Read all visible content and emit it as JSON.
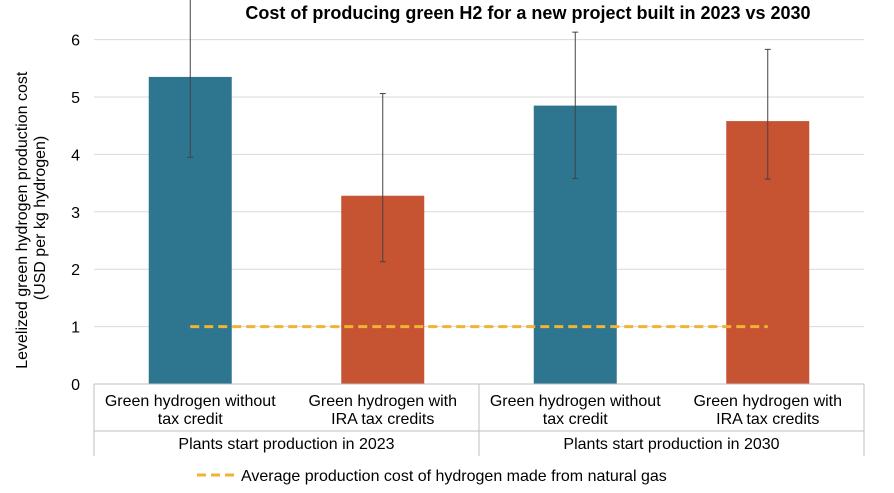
{
  "chart_data": {
    "type": "bar",
    "title": "Cost of producing green H2 for a new project built in 2023 vs 2030",
    "ylabel_lines": [
      "Levelized green hydrogen production cost",
      "(USD per kg hydrogen)"
    ],
    "ylim": [
      0,
      6.5
    ],
    "yticks": [
      "0",
      "1",
      "2",
      "3",
      "4",
      "5",
      "6"
    ],
    "grid": true,
    "bars": [
      {
        "label_lines": [
          "Green hydrogen without",
          "tax credit"
        ],
        "value": 5.35,
        "err_low": 3.95,
        "err_high": 7.0,
        "color": "#2E7590"
      },
      {
        "label_lines": [
          "Green hydrogen with",
          "IRA tax credits"
        ],
        "value": 3.28,
        "err_low": 2.13,
        "err_high": 5.06,
        "color": "#C65332"
      },
      {
        "label_lines": [
          "Green hydrogen without",
          "tax credit"
        ],
        "value": 4.85,
        "err_low": 3.58,
        "err_high": 6.13,
        "color": "#2E7590"
      },
      {
        "label_lines": [
          "Green hydrogen with",
          "IRA tax credits"
        ],
        "value": 4.58,
        "err_low": 3.57,
        "err_high": 5.83,
        "color": "#C65332"
      }
    ],
    "groups": [
      "Plants start production in 2023",
      "Plants start production in 2030"
    ],
    "reference_line": {
      "value": 1.0,
      "color": "#F2B233",
      "label": "Average production cost of hydrogen made from natural gas"
    },
    "legend_position": "bottom"
  }
}
